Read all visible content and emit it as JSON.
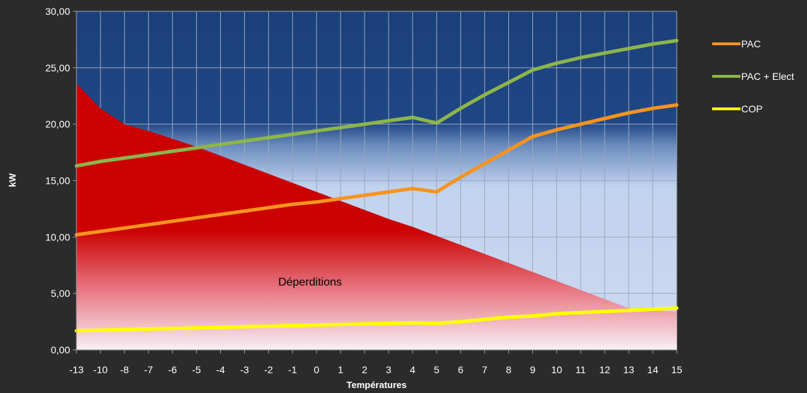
{
  "chart_data": {
    "type": "line",
    "categories": [
      "-13",
      "-10",
      "-8",
      "-7",
      "-6",
      "-5",
      "-4",
      "-3",
      "-2",
      "-1",
      "0",
      "1",
      "2",
      "3",
      "4",
      "5",
      "6",
      "7",
      "8",
      "9",
      "10",
      "11",
      "12",
      "13",
      "14",
      "15"
    ],
    "xlabel": "Températures",
    "ylabel": "kW",
    "ylim": [
      0,
      30
    ],
    "yticks": [
      "0,00",
      "5,00",
      "10,00",
      "15,00",
      "20,00",
      "25,00",
      "30,00"
    ],
    "grid": true,
    "legend_position": "right",
    "area": {
      "label": "Déperditions",
      "color": "#cc0000",
      "values": [
        23.6,
        21.4,
        20.0,
        19.4,
        18.7,
        18.0,
        17.2,
        16.4,
        15.6,
        14.8,
        14.0,
        13.2,
        12.4,
        11.6,
        10.9,
        10.1,
        9.3,
        8.5,
        7.7,
        6.9,
        6.1,
        5.3,
        4.5,
        3.7,
        3.5,
        3.4
      ]
    },
    "series": [
      {
        "name": "PAC",
        "color": "#f7941d",
        "values": [
          10.2,
          10.5,
          10.8,
          11.1,
          11.4,
          11.7,
          12.0,
          12.3,
          12.6,
          12.9,
          13.1,
          13.4,
          13.7,
          14.0,
          14.3,
          14.0,
          15.3,
          16.5,
          17.7,
          18.9,
          19.5,
          20.0,
          20.5,
          21.0,
          21.4,
          21.7
        ]
      },
      {
        "name": "PAC + Elect",
        "color": "#8db54a",
        "values": [
          16.3,
          16.7,
          17.0,
          17.3,
          17.6,
          17.9,
          18.2,
          18.5,
          18.8,
          19.1,
          19.4,
          19.7,
          20.0,
          20.3,
          20.6,
          20.1,
          21.4,
          22.6,
          23.7,
          24.8,
          25.4,
          25.9,
          26.3,
          26.7,
          27.1,
          27.4
        ]
      },
      {
        "name": "COP",
        "color": "#ffff00",
        "values": [
          1.7,
          1.75,
          1.8,
          1.85,
          1.9,
          1.95,
          2.0,
          2.05,
          2.1,
          2.15,
          2.2,
          2.25,
          2.3,
          2.35,
          2.4,
          2.35,
          2.5,
          2.7,
          2.9,
          3.0,
          3.2,
          3.3,
          3.4,
          3.5,
          3.6,
          3.7
        ]
      }
    ]
  }
}
